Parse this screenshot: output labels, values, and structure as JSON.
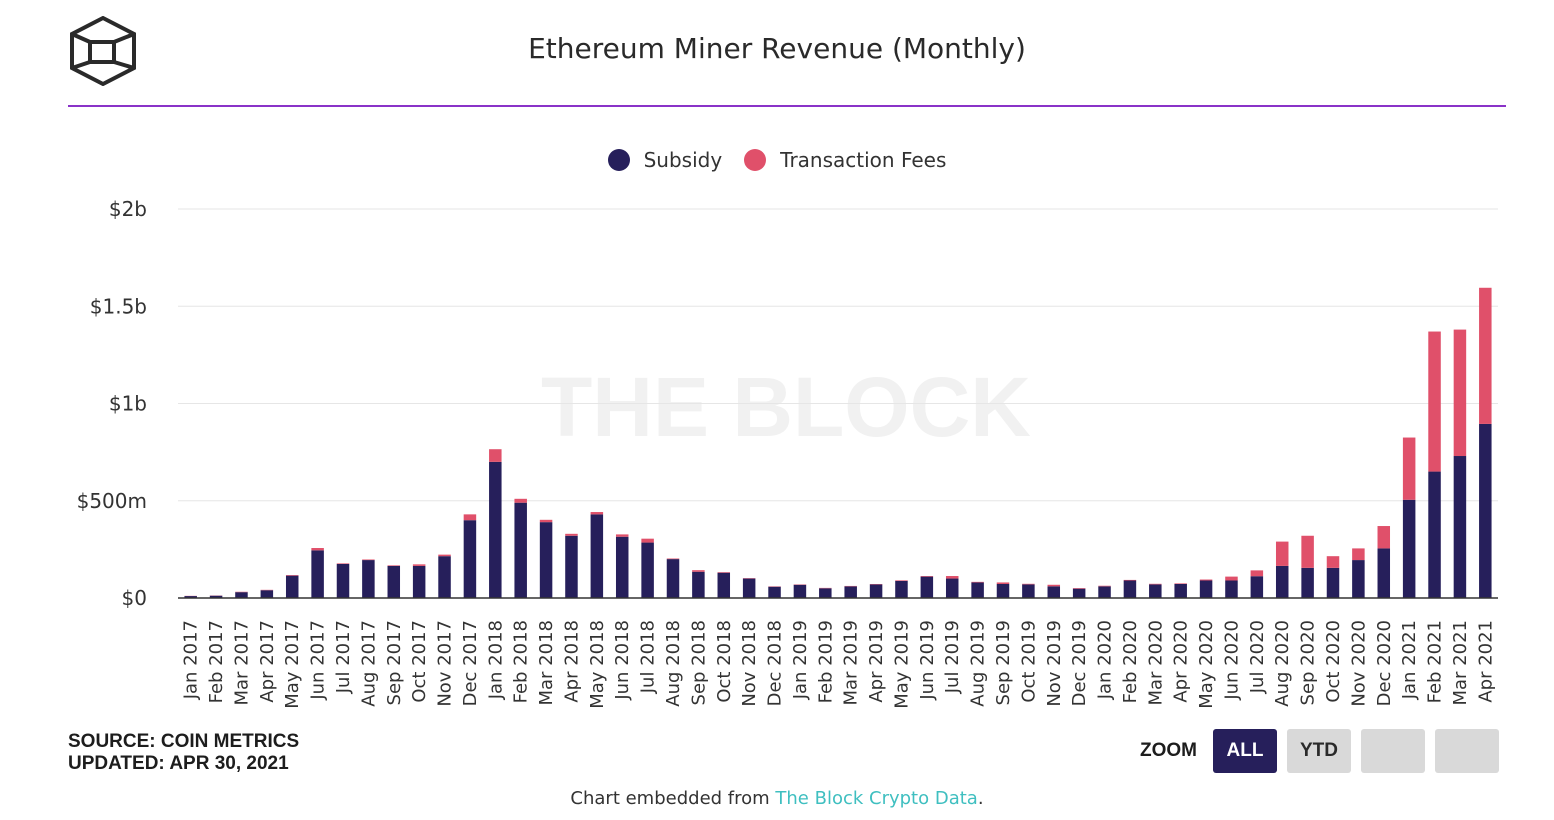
{
  "title": "Ethereum Miner Revenue (Monthly)",
  "watermark": "THE BLOCK",
  "colors": {
    "subsidy": "#261f5b",
    "fees": "#e0506a",
    "accent_rule": "#8a32c8",
    "link": "#3fbfc0"
  },
  "legend": {
    "subsidy_label": "Subsidy",
    "fees_label": "Transaction Fees"
  },
  "source": {
    "line1": "SOURCE: COIN METRICS",
    "line2": "UPDATED: APR 30, 2021"
  },
  "zoom": {
    "label": "ZOOM",
    "buttons": [
      "ALL",
      "YTD",
      "",
      ""
    ],
    "active": "ALL"
  },
  "footer": {
    "prefix": "Chart embedded from ",
    "link_text": "The Block Crypto Data",
    "suffix": "."
  },
  "chart_data": {
    "type": "bar",
    "stacked": true,
    "title": "Ethereum Miner Revenue (Monthly)",
    "ylim": [
      0,
      2000000000
    ],
    "yticks": [
      {
        "value": 0,
        "label": "$0"
      },
      {
        "value": 500000000,
        "label": "$500m"
      },
      {
        "value": 1000000000,
        "label": "$1b"
      },
      {
        "value": 1500000000,
        "label": "$1.5b"
      },
      {
        "value": 2000000000,
        "label": "$2b"
      }
    ],
    "grid": true,
    "legend_position": "top-center",
    "categories": [
      "Jan 2017",
      "Feb 2017",
      "Mar 2017",
      "Apr 2017",
      "May 2017",
      "Jun 2017",
      "Jul 2017",
      "Aug 2017",
      "Sep 2017",
      "Oct 2017",
      "Nov 2017",
      "Dec 2017",
      "Jan 2018",
      "Feb 2018",
      "Mar 2018",
      "Apr 2018",
      "May 2018",
      "Jun 2018",
      "Jul 2018",
      "Aug 2018",
      "Sep 2018",
      "Oct 2018",
      "Nov 2018",
      "Dec 2018",
      "Jan 2019",
      "Feb 2019",
      "Mar 2019",
      "Apr 2019",
      "May 2019",
      "Jun 2019",
      "Jul 2019",
      "Aug 2019",
      "Sep 2019",
      "Oct 2019",
      "Nov 2019",
      "Dec 2019",
      "Jan 2020",
      "Feb 2020",
      "Mar 2020",
      "Apr 2020",
      "May 2020",
      "Jun 2020",
      "Jul 2020",
      "Aug 2020",
      "Sep 2020",
      "Oct 2020",
      "Nov 2020",
      "Dec 2020",
      "Jan 2021",
      "Feb 2021",
      "Mar 2021",
      "Apr 2021"
    ],
    "series": [
      {
        "name": "Subsidy",
        "values": [
          10000000,
          12000000,
          30000000,
          40000000,
          115000000,
          245000000,
          175000000,
          195000000,
          165000000,
          165000000,
          215000000,
          400000000,
          700000000,
          490000000,
          390000000,
          320000000,
          430000000,
          315000000,
          285000000,
          200000000,
          135000000,
          130000000,
          100000000,
          58000000,
          68000000,
          50000000,
          60000000,
          70000000,
          88000000,
          110000000,
          100000000,
          80000000,
          72000000,
          70000000,
          60000000,
          48000000,
          60000000,
          90000000,
          70000000,
          72000000,
          90000000,
          90000000,
          112000000,
          165000000,
          155000000,
          155000000,
          195000000,
          255000000,
          505000000,
          650000000,
          730000000,
          895000000
        ]
      },
      {
        "name": "Transaction Fees",
        "values": [
          1000000,
          1000000,
          2000000,
          2000000,
          3000000,
          12000000,
          3000000,
          3000000,
          3000000,
          8000000,
          8000000,
          30000000,
          65000000,
          20000000,
          12000000,
          10000000,
          12000000,
          12000000,
          20000000,
          3000000,
          8000000,
          3000000,
          2000000,
          2000000,
          2000000,
          2000000,
          2000000,
          2000000,
          3000000,
          3000000,
          13000000,
          3000000,
          8000000,
          3000000,
          8000000,
          3000000,
          3000000,
          3000000,
          3000000,
          3000000,
          5000000,
          20000000,
          30000000,
          125000000,
          165000000,
          60000000,
          60000000,
          115000000,
          320000000,
          720000000,
          650000000,
          700000000
        ]
      }
    ]
  }
}
